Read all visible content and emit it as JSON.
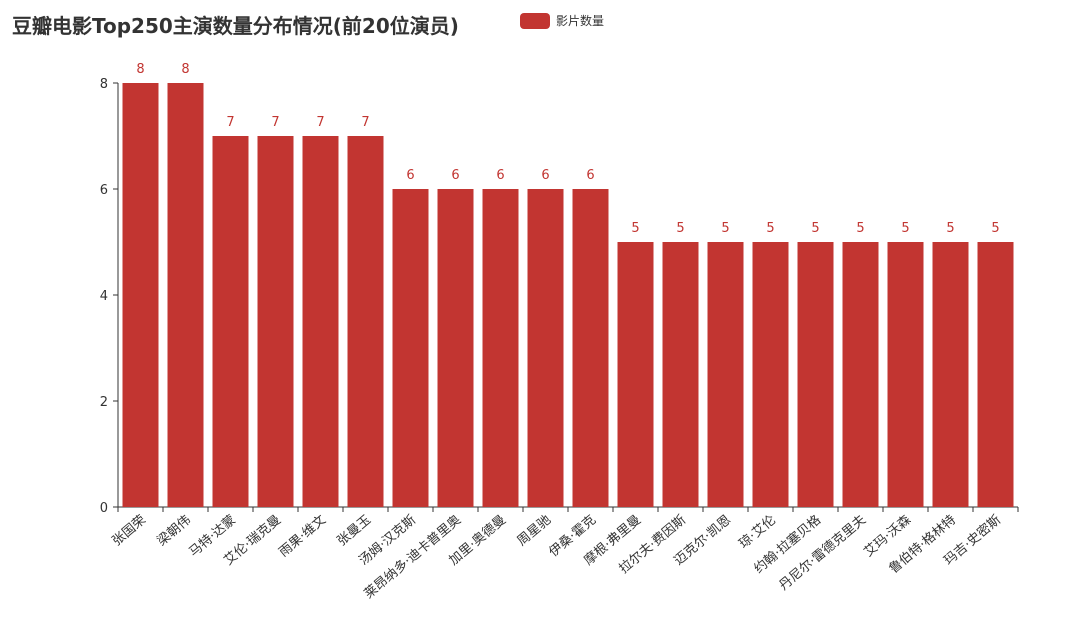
{
  "chart_data": {
    "type": "bar",
    "title": "豆瓣电影Top250主演数量分布情况(前20位演员)",
    "legend": {
      "entries": [
        "影片数量"
      ],
      "placement": "top"
    },
    "categories": [
      "张国荣",
      "梁朝伟",
      "马特·达蒙",
      "艾伦·瑞克曼",
      "雨果·维文",
      "张曼玉",
      "汤姆·汉克斯",
      "莱昂纳多·迪卡普里奥",
      "加里·奥德曼",
      "周星驰",
      "伊桑·霍克",
      "摩根·弗里曼",
      "拉尔夫·费因斯",
      "迈克尔·凯恩",
      "琼·艾伦",
      "约翰·拉塞贝格",
      "丹尼尔·雷德克里夫",
      "艾玛·沃森",
      "鲁伯特·格林特",
      "玛吉·史密斯"
    ],
    "series": [
      {
        "name": "影片数量",
        "values": [
          8,
          8,
          7,
          7,
          7,
          7,
          6,
          6,
          6,
          6,
          6,
          5,
          5,
          5,
          5,
          5,
          5,
          5,
          5,
          5
        ]
      }
    ],
    "ylim": [
      0,
      8
    ],
    "yticks": [
      0,
      2,
      4,
      6,
      8
    ],
    "grid": false,
    "colors": {
      "bar": "#c23531",
      "axis": "#333333"
    }
  }
}
